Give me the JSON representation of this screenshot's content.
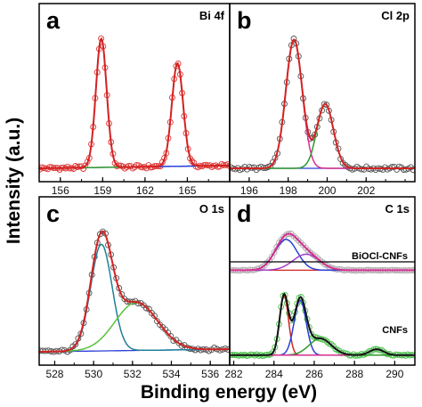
{
  "figure": {
    "ylabel": "Intensity (a.u.)",
    "xlabel": "Binding energy (eV)"
  },
  "chart_data": [
    {
      "panel": "a",
      "title": "Bi 4f",
      "type": "line",
      "xlim": [
        154.5,
        168
      ],
      "xticks": [
        156,
        159,
        162,
        165
      ],
      "xtick_labels": [
        "156",
        "159",
        "162",
        "165"
      ],
      "yticks": false,
      "peaks": [
        {
          "color": "#2a3fd6",
          "center": 158.9,
          "height": 1.0,
          "width": 0.38
        },
        {
          "color": "#2f9a2f",
          "center": 164.3,
          "height": 0.8,
          "width": 0.4
        }
      ],
      "background": {
        "color": "#2a3fd6",
        "start": 0.0,
        "end": 0.02
      },
      "envelope_color": "#d42222",
      "markers": {
        "color": "#e03a3a",
        "spacing": 0.14
      }
    },
    {
      "panel": "b",
      "title": "Cl 2p",
      "type": "line",
      "xlim": [
        195,
        204.5
      ],
      "xticks": [
        196,
        198,
        200,
        202
      ],
      "xtick_labels": [
        "196",
        "198",
        "200",
        "202"
      ],
      "yticks": false,
      "peaks": [
        {
          "color": "#d62e8e",
          "center": 198.3,
          "height": 1.0,
          "width": 0.42
        },
        {
          "color": "#2f9a2f",
          "center": 199.9,
          "height": 0.5,
          "width": 0.42
        }
      ],
      "background": {
        "color": "#2a3fd6",
        "start": 0.0,
        "end": 0.0
      },
      "envelope_color": "#d42222",
      "markers": {
        "color": "#555555",
        "spacing": 0.12
      }
    },
    {
      "panel": "c",
      "title": "O 1s",
      "type": "line",
      "xlim": [
        527.2,
        537
      ],
      "xticks": [
        528,
        530,
        532,
        534,
        536
      ],
      "xtick_labels": [
        "528",
        "530",
        "532",
        "534",
        "536"
      ],
      "yticks": false,
      "peaks": [
        {
          "color": "#1f7f9a",
          "center": 530.4,
          "height": 1.0,
          "width": 0.55
        },
        {
          "color": "#56c23a",
          "center": 532.2,
          "height": 0.45,
          "width": 1.1
        }
      ],
      "background": {
        "color": "#2a3fd6",
        "start": 0.0,
        "end": 0.02
      },
      "envelope_color": "#d42222",
      "markers": {
        "color": "#555555",
        "spacing": 0.14
      }
    },
    {
      "panel": "d",
      "title": "C 1s",
      "type": "line",
      "xlim": [
        281.8,
        291
      ],
      "xticks": [
        282,
        284,
        286,
        288,
        290
      ],
      "xtick_labels": [
        "282",
        "284",
        "286",
        "288",
        "290"
      ],
      "yticks": false,
      "series": [
        {
          "name": "BiOCl-CNFs",
          "offset": 0.62,
          "scale": 0.28,
          "peaks": [
            {
              "color": "#2a3fd6",
              "center": 284.6,
              "height": 1.0,
              "width": 0.55
            },
            {
              "color": "#a33fc8",
              "center": 285.6,
              "height": 0.52,
              "width": 0.65
            }
          ],
          "background": {
            "color": "#d42222",
            "start": 0.0,
            "end": 0.0
          },
          "envelope_color": "#d62e8e",
          "markers": {
            "color": "#aaaaaa",
            "spacing": 0.12
          }
        },
        {
          "name": "CNFs",
          "offset": 0.02,
          "scale": 0.47,
          "peaks": [
            {
              "color": "#d42222",
              "center": 284.5,
              "height": 1.0,
              "width": 0.22
            },
            {
              "color": "#2a3fd6",
              "center": 285.3,
              "height": 0.92,
              "width": 0.3
            },
            {
              "color": "#2f9a2f",
              "center": 286.3,
              "height": 0.28,
              "width": 0.55
            },
            {
              "color": "#d62e8e",
              "center": 289.1,
              "height": 0.1,
              "width": 0.35
            }
          ],
          "background": {
            "color": "#111111",
            "start": 0.0,
            "end": 0.0
          },
          "envelope_color": "#111111",
          "markers": {
            "color": "#4cc24c",
            "spacing": 0.1
          }
        }
      ]
    }
  ]
}
